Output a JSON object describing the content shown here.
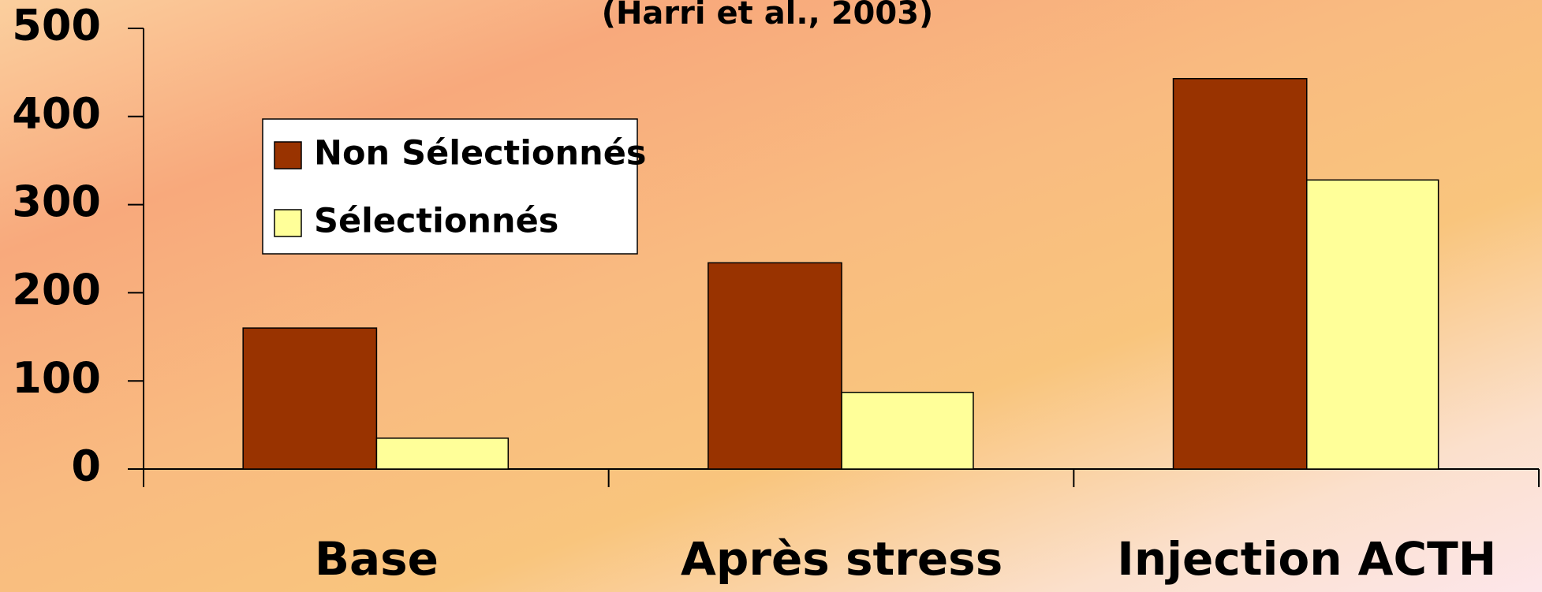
{
  "chart_data": {
    "type": "bar",
    "title": "(Harri et al., 2003)",
    "categories": [
      "Base",
      "Après stress",
      "Injection ACTH"
    ],
    "series": [
      {
        "name": "Non Sélectionnés",
        "color": "#993300",
        "values": [
          160,
          234,
          443
        ]
      },
      {
        "name": "Sélectionnés",
        "color": "#ffff99",
        "values": [
          35,
          87,
          328
        ]
      }
    ],
    "ylim": [
      0,
      500
    ],
    "yticks": [
      0,
      100,
      200,
      300,
      400,
      500
    ],
    "grid": false,
    "legend": "upper left"
  }
}
